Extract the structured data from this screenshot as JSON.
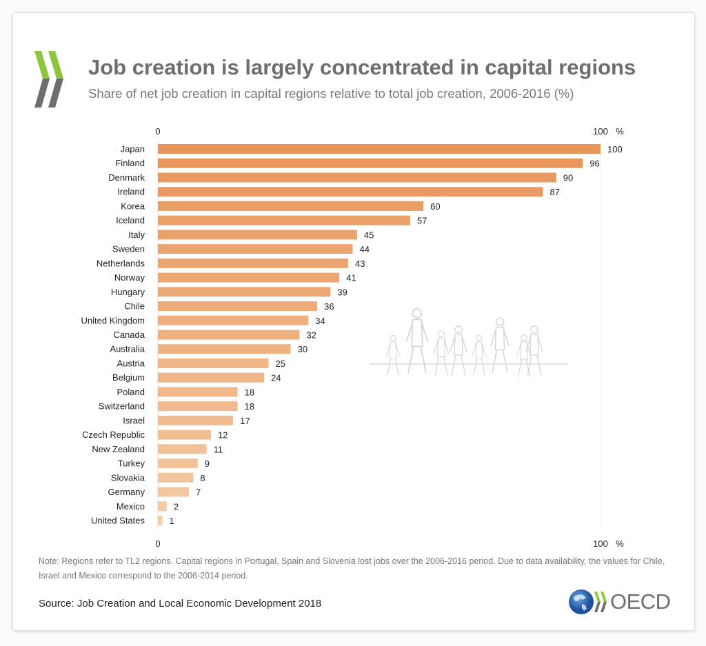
{
  "header": {
    "title": "Job creation is largely concentrated in capital regions",
    "subtitle": "Share of net job creation in capital regions relative to total job creation, 2006-2016 (%)"
  },
  "chart_data": {
    "type": "bar",
    "orientation": "horizontal",
    "categories": [
      "Japan",
      "Finland",
      "Denmark",
      "Ireland",
      "Korea",
      "Iceland",
      "Italy",
      "Sweden",
      "Netherlands",
      "Norway",
      "Hungary",
      "Chile",
      "United Kingdom",
      "Canada",
      "Australia",
      "Austria",
      "Belgium",
      "Poland",
      "Switzerland",
      "Israel",
      "Czech Republic",
      "New Zealand",
      "Turkey",
      "Slovakia",
      "Germany",
      "Mexico",
      "United States"
    ],
    "values": [
      100,
      96,
      90,
      87,
      60,
      57,
      45,
      44,
      43,
      41,
      39,
      36,
      34,
      32,
      30,
      25,
      24,
      18,
      18,
      17,
      12,
      11,
      9,
      8,
      7,
      2,
      1
    ],
    "xlim": [
      0,
      100
    ],
    "x_ticks": [
      "0",
      "100"
    ],
    "x_unit": "%",
    "grid": false,
    "colors": {
      "top": "#e8955a",
      "bottom": "#f5cba6"
    }
  },
  "footer": {
    "note": "Note: Regions refer to TL2 regions. Capital regions in Portugal, Spain and Slovenia lost jobs over the 2006-2016 period. Due to data availability, the values for Chile, Israel and Mexico correspond to the 2006-2014 period.",
    "source": "Source: Job Creation and Local Economic Development 2018",
    "logo_text": "OECD"
  }
}
